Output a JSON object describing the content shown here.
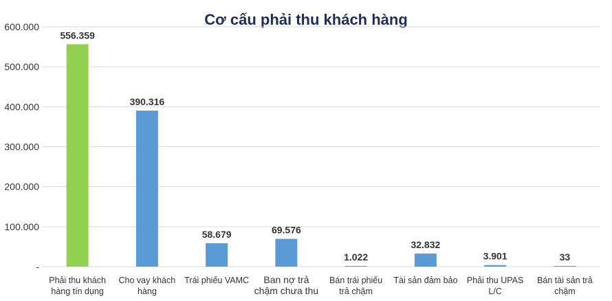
{
  "chart_data": {
    "type": "bar",
    "title": "Cơ cấu phải thu khách hàng",
    "xlabel": "",
    "ylabel": "",
    "ylim": [
      0,
      600000
    ],
    "yticks": [
      0,
      100000,
      200000,
      300000,
      400000,
      500000,
      600000
    ],
    "ytick_labels": [
      "-",
      "100.000",
      "200.000",
      "300.000",
      "400.000",
      "500.000",
      "600.000"
    ],
    "grid": true,
    "legend": "none",
    "categories": [
      [
        "Phải thu khách",
        "hàng tín dụng"
      ],
      [
        "Cho vay khách",
        "hàng"
      ],
      [
        "Trái phiếu VAMC"
      ],
      [
        "Ban nợ trả",
        "chậm chưa thu"
      ],
      [
        "Bán trái phiếu",
        "trả chậm"
      ],
      [
        "Tài sản  đảm bảo"
      ],
      [
        "Phải thu UPAS",
        "L/C"
      ],
      [
        "Bán tài sản trả",
        "chậm"
      ]
    ],
    "values": [
      556359,
      390316,
      58679,
      69576,
      1022,
      32832,
      3901,
      33
    ],
    "value_labels": [
      "556.359",
      "390.316",
      "58.679",
      "69.576",
      "1.022",
      "32.832",
      "3.901",
      "33"
    ],
    "colors": [
      "#92d050",
      "#5b9bd5",
      "#5b9bd5",
      "#5b9bd5",
      "#5b9bd5",
      "#5b9bd5",
      "#5b9bd5",
      "#5b9bd5"
    ]
  }
}
